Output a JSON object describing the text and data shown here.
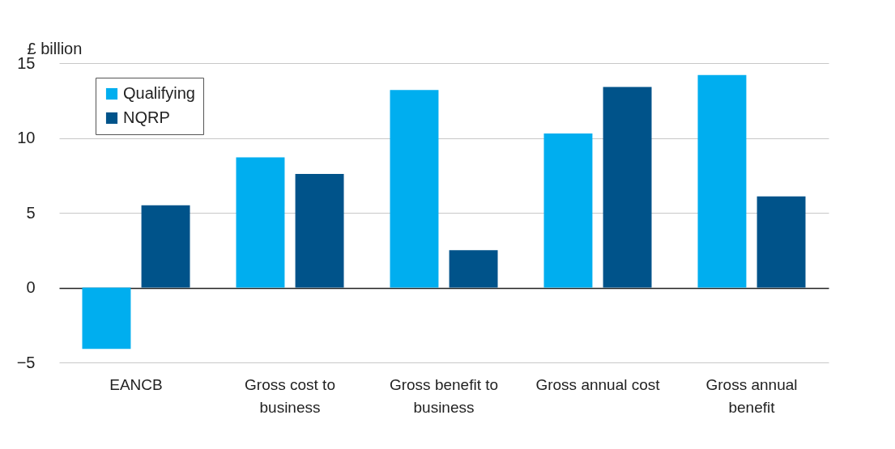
{
  "chart_data": {
    "type": "bar",
    "ylabel": "£ billion",
    "categories": [
      "EANCB",
      "Gross cost to business",
      "Gross benefit to business",
      "Gross annual cost",
      "Gross annual benefit"
    ],
    "series": [
      {
        "name": "Qualifying",
        "color": "#00aeef",
        "values": [
          -4.1,
          8.7,
          13.2,
          10.3,
          14.2
        ]
      },
      {
        "name": "NQRP",
        "color": "#00538a",
        "values": [
          5.5,
          7.6,
          2.5,
          13.4,
          6.1
        ]
      }
    ],
    "ylim": [
      -5,
      15
    ],
    "yticks": [
      -5,
      0,
      5,
      10,
      15
    ],
    "grid": "y",
    "legend": "top left"
  }
}
